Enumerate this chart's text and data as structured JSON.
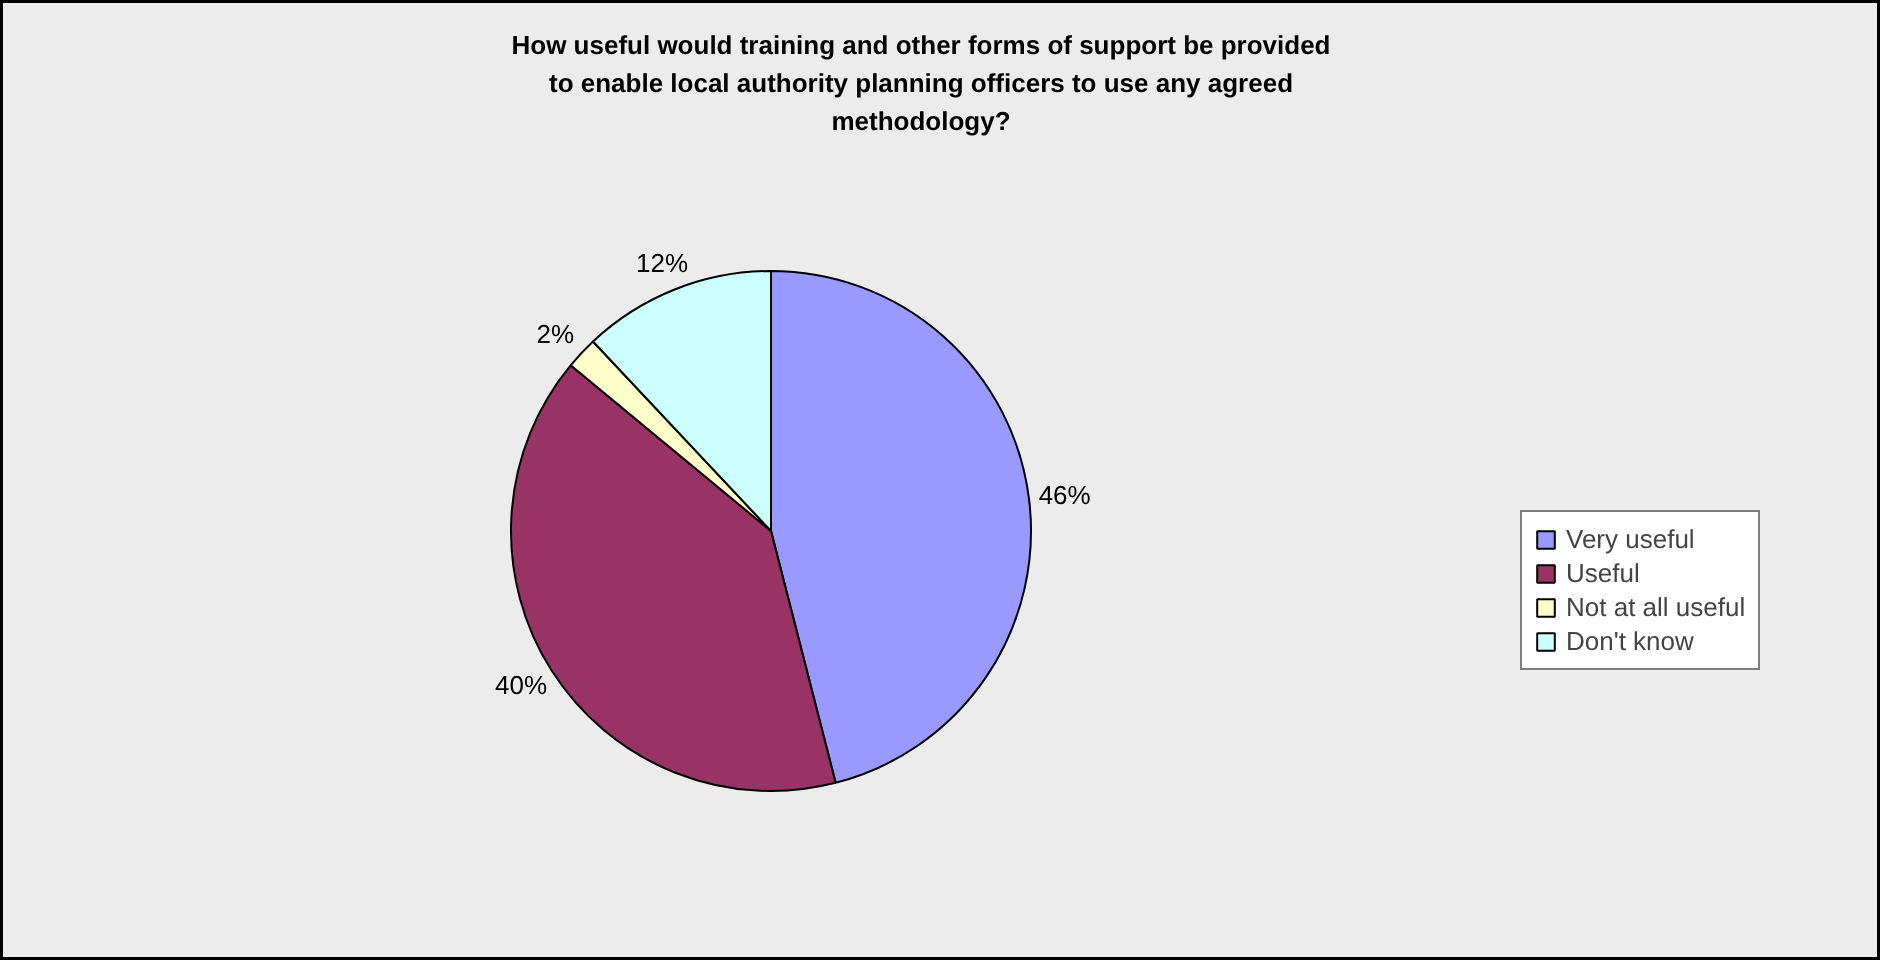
{
  "chart_data": {
    "type": "pie",
    "title": "How useful would training and other forms of support be provided to enable local authority planning officers to use any agreed methodology?",
    "categories": [
      "Very useful",
      "Useful",
      "Not at all useful",
      "Don't know"
    ],
    "values": [
      46,
      40,
      2,
      12
    ],
    "colors": [
      "#9999ff",
      "#993366",
      "#ffffcc",
      "#ccffff"
    ],
    "value_labels": [
      "46%",
      "40%",
      "2%",
      "12%"
    ],
    "legend": "right"
  }
}
